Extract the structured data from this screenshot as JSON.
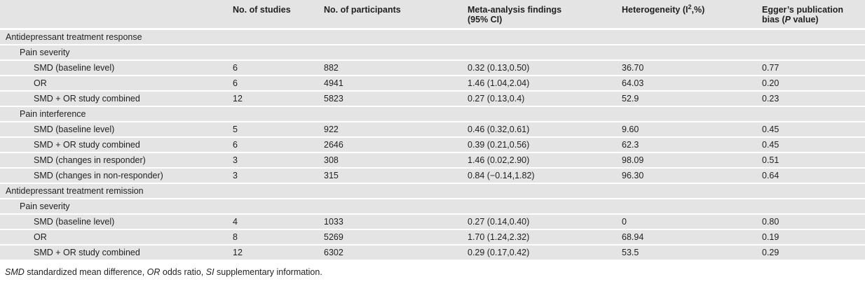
{
  "colors": {
    "row_background": "#e4e4e4",
    "row_separator": "#ffffff",
    "text": "#1f1f1f"
  },
  "table": {
    "header": {
      "col_label": "",
      "col_studies": "No. of studies",
      "col_participants": "No. of participants",
      "col_findings_line1": "Meta-analysis findings",
      "col_findings_line2": "(95% CI)",
      "col_heterogeneity_pre": "Heterogeneity (I",
      "col_heterogeneity_sup": "2",
      "col_heterogeneity_post": ",%)",
      "col_egger_line1": "Egger’s publication",
      "col_egger_line2_pre": "bias (",
      "col_egger_line2_italic": "P",
      "col_egger_line2_post": " value)"
    },
    "rows": [
      {
        "label": "Antidepressant treatment response",
        "level": 0,
        "values": [
          "",
          "",
          "",
          "",
          ""
        ]
      },
      {
        "label": "Pain severity",
        "level": 1,
        "values": [
          "",
          "",
          "",
          "",
          ""
        ]
      },
      {
        "label": "SMD (baseline level)",
        "level": 2,
        "values": [
          "6",
          "882",
          "0.32 (0.13,0.50)",
          "36.70",
          "0.77"
        ]
      },
      {
        "label": "OR",
        "level": 2,
        "values": [
          "6",
          "4941",
          "1.46 (1.04,2.04)",
          "64.03",
          "0.20"
        ]
      },
      {
        "label": "SMD + OR study combined",
        "level": 2,
        "values": [
          "12",
          "5823",
          "0.27 (0.13,0.4)",
          "52.9",
          "0.23"
        ]
      },
      {
        "label": "Pain interference",
        "level": 1,
        "values": [
          "",
          "",
          "",
          "",
          ""
        ]
      },
      {
        "label": "SMD (baseline level)",
        "level": 2,
        "values": [
          "5",
          "922",
          "0.46 (0.32,0.61)",
          "9.60",
          "0.45"
        ]
      },
      {
        "label": "SMD + OR study combined",
        "level": 2,
        "values": [
          "6",
          "2646",
          "0.39 (0.21,0.56)",
          "62.3",
          "0.45"
        ]
      },
      {
        "label": "SMD (changes in responder)",
        "level": 2,
        "values": [
          "3",
          "308",
          "1.46 (0.02,2.90)",
          "98.09",
          "0.51"
        ]
      },
      {
        "label": "SMD (changes in non-responder)",
        "level": 2,
        "values": [
          "3",
          "315",
          "0.84 (−0.14,1.82)",
          "96.30",
          "0.64"
        ]
      },
      {
        "label": "Antidepressant treatment remission",
        "level": 0,
        "values": [
          "",
          "",
          "",
          "",
          ""
        ]
      },
      {
        "label": "Pain severity",
        "level": 1,
        "values": [
          "",
          "",
          "",
          "",
          ""
        ]
      },
      {
        "label": "SMD (baseline level)",
        "level": 2,
        "values": [
          "4",
          "1033",
          "0.27 (0.14,0.40)",
          "0",
          "0.80"
        ]
      },
      {
        "label": "OR",
        "level": 2,
        "values": [
          "8",
          "5269",
          "1.70 (1.24,2.32)",
          "68.94",
          "0.19"
        ]
      },
      {
        "label": "SMD + OR study combined",
        "level": 2,
        "values": [
          "12",
          "6302",
          "0.29 (0.17,0.42)",
          "53.5",
          "0.29"
        ]
      }
    ]
  },
  "footnote": {
    "abbr_smd": "SMD",
    "text_smd": " standardized mean difference, ",
    "abbr_or": "OR",
    "text_or": " odds ratio, ",
    "abbr_si": "SI",
    "text_si": " supplementary information."
  }
}
